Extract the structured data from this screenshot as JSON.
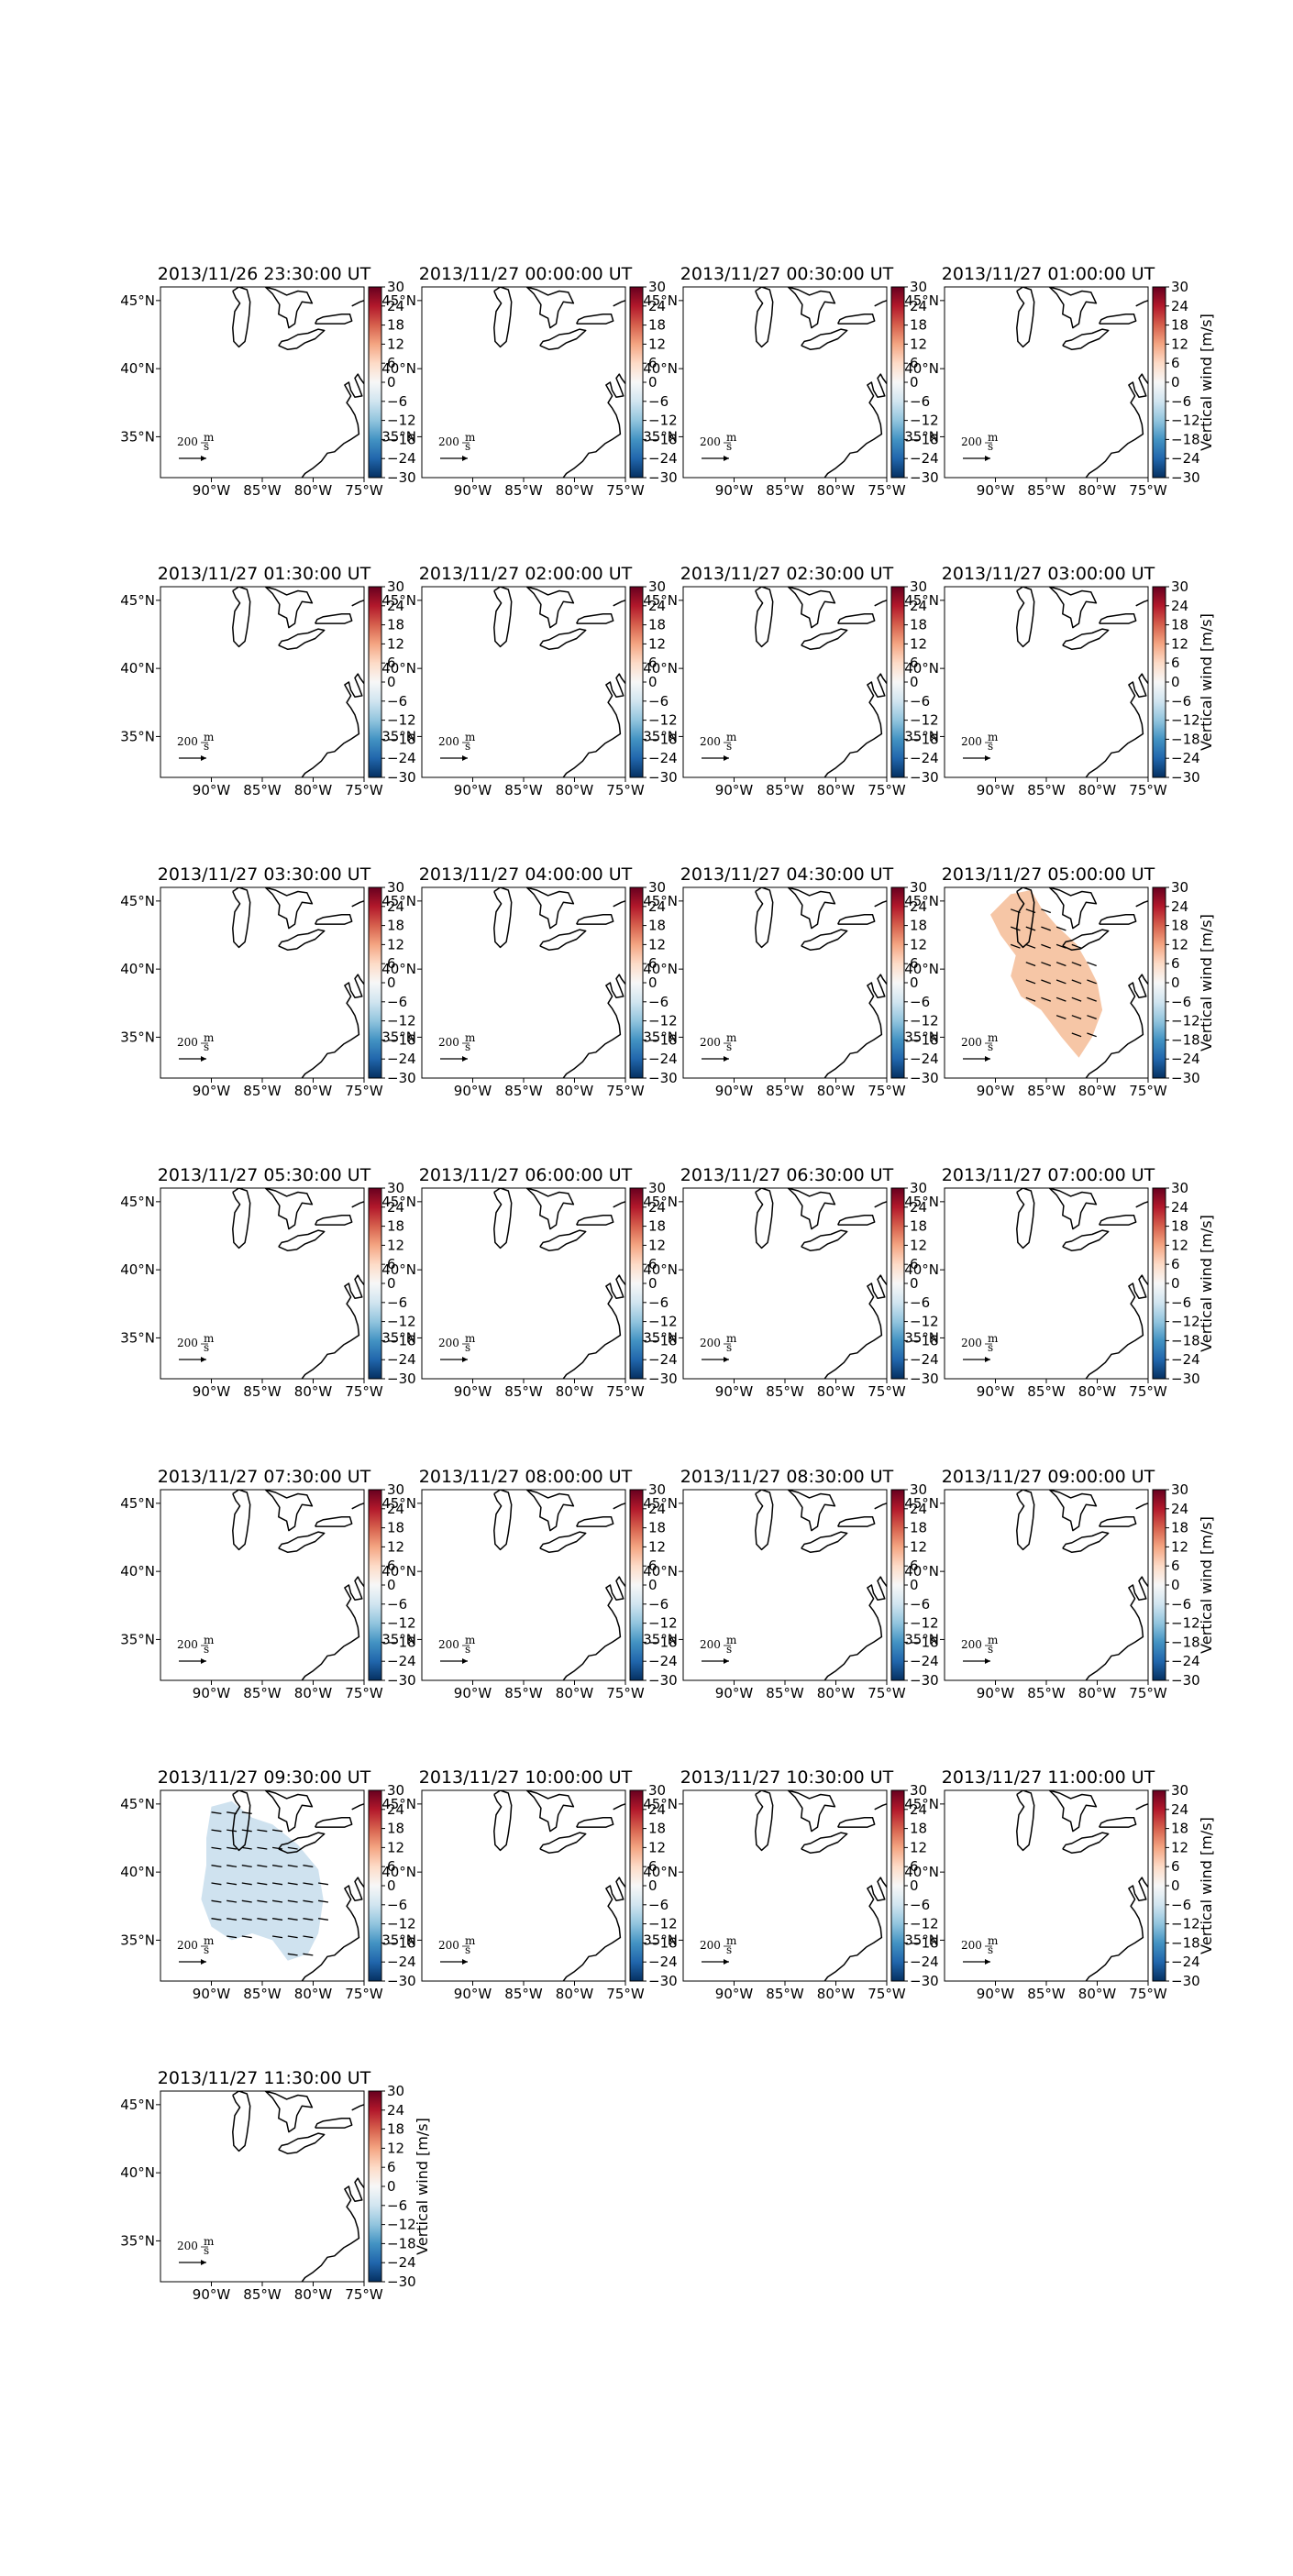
{
  "figure": {
    "colorbar_label": "Vertical wind [m/s]",
    "colorbar_ticks": [
      30,
      24,
      18,
      12,
      6,
      0,
      -6,
      -12,
      -18,
      -24,
      -30
    ],
    "x_ticks": [
      "90°W",
      "85°W",
      "80°W",
      "75°W"
    ],
    "y_ticks": [
      "45°N",
      "40°N",
      "35°N"
    ],
    "ref_label": "200",
    "ref_unit_top": "m",
    "ref_unit_bottom": "s",
    "colors": {
      "positive_field": "#f6c6a6",
      "negative_field": "#cfe2ef",
      "coastline": "#000000"
    },
    "colormap": "RdBu_r"
  },
  "chart_data": {
    "type": "heatmap",
    "title": "",
    "xlim": [
      -95,
      -75
    ],
    "ylim": [
      32,
      46
    ],
    "vmin": -30,
    "vmax": 30,
    "colorbar_label": "Vertical wind [m/s]",
    "panels": [
      {
        "title": "2013/11/26 23:30:00 UT",
        "field": null,
        "value": null
      },
      {
        "title": "2013/11/27 00:00:00 UT",
        "field": null,
        "value": null
      },
      {
        "title": "2013/11/27 00:30:00 UT",
        "field": null,
        "value": null
      },
      {
        "title": "2013/11/27 01:00:00 UT",
        "field": null,
        "value": null
      },
      {
        "title": "2013/11/27 01:30:00 UT",
        "field": null,
        "value": null
      },
      {
        "title": "2013/11/27 02:00:00 UT",
        "field": null,
        "value": null
      },
      {
        "title": "2013/11/27 02:30:00 UT",
        "field": null,
        "value": null
      },
      {
        "title": "2013/11/27 03:00:00 UT",
        "field": null,
        "value": null
      },
      {
        "title": "2013/11/27 03:30:00 UT",
        "field": null,
        "value": null
      },
      {
        "title": "2013/11/27 04:00:00 UT",
        "field": null,
        "value": null
      },
      {
        "title": "2013/11/27 04:30:00 UT",
        "field": null,
        "value": null
      },
      {
        "title": "2013/11/27 05:00:00 UT",
        "field": "positive",
        "value": 5
      },
      {
        "title": "2013/11/27 05:30:00 UT",
        "field": null,
        "value": null
      },
      {
        "title": "2013/11/27 06:00:00 UT",
        "field": null,
        "value": null
      },
      {
        "title": "2013/11/27 06:30:00 UT",
        "field": null,
        "value": null
      },
      {
        "title": "2013/11/27 07:00:00 UT",
        "field": null,
        "value": null
      },
      {
        "title": "2013/11/27 07:30:00 UT",
        "field": null,
        "value": null
      },
      {
        "title": "2013/11/27 08:00:00 UT",
        "field": null,
        "value": null
      },
      {
        "title": "2013/11/27 08:30:00 UT",
        "field": null,
        "value": null
      },
      {
        "title": "2013/11/27 09:00:00 UT",
        "field": null,
        "value": null
      },
      {
        "title": "2013/11/27 09:30:00 UT",
        "field": "negative",
        "value": -3
      },
      {
        "title": "2013/11/27 10:00:00 UT",
        "field": null,
        "value": null
      },
      {
        "title": "2013/11/27 10:30:00 UT",
        "field": null,
        "value": null
      },
      {
        "title": "2013/11/27 11:00:00 UT",
        "field": null,
        "value": null
      },
      {
        "title": "2013/11/27 11:30:00 UT",
        "field": null,
        "value": null
      }
    ]
  }
}
